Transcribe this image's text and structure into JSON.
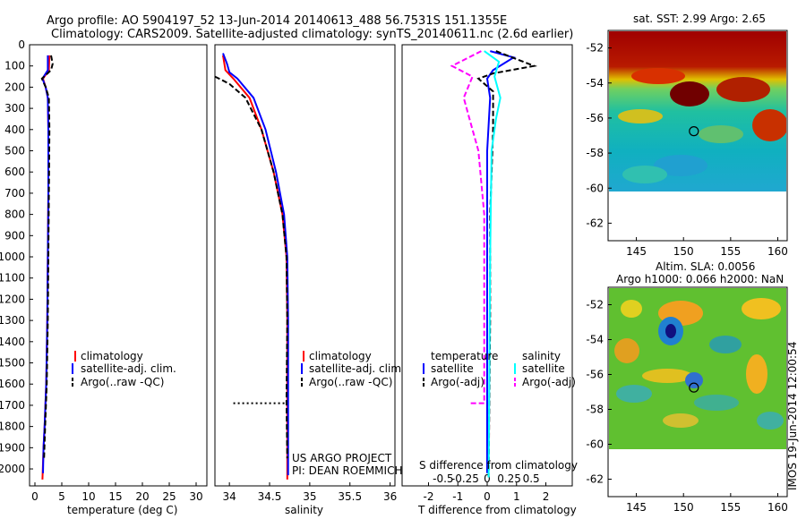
{
  "header": {
    "line1": "Argo profile: AO 5904197_52 13-Jun-2014 20140613_488 56.7531S 151.1355E",
    "line2": "Climatology: CARS2009. Satellite-adjusted climatology: synTS_20140611.nc (2.6d earlier)"
  },
  "colors": {
    "climatology": "#ff0000",
    "satellite": "#0000ff",
    "argo": "#000000",
    "salinity_satellite": "#00ffff",
    "salinity_argo": "#ff00ff"
  },
  "chart_data": [
    {
      "type": "line",
      "panel": "temperature",
      "xlabel": "temperature (deg C)",
      "xticks": [
        0,
        5,
        10,
        15,
        20,
        25,
        30
      ],
      "xlim": [
        -1,
        32
      ],
      "ylim": [
        2080,
        0
      ],
      "yticks": [
        0,
        100,
        200,
        300,
        400,
        500,
        600,
        700,
        800,
        900,
        1000,
        1100,
        1200,
        1300,
        1400,
        1500,
        1600,
        1700,
        1800,
        1900,
        2000
      ],
      "legend": [
        "climatology",
        "satellite-adj. clim.",
        "Argo(..raw -QC)"
      ],
      "series": [
        {
          "name": "climatology",
          "points": [
            [
              2.7,
              50
            ],
            [
              2.6,
              120
            ],
            [
              1.5,
              160
            ],
            [
              2.0,
              200
            ],
            [
              2.4,
              250
            ],
            [
              2.5,
              400
            ],
            [
              2.5,
              700
            ],
            [
              2.4,
              1000
            ],
            [
              2.3,
              1300
            ],
            [
              2.1,
              1600
            ],
            [
              1.8,
              1800
            ],
            [
              1.6,
              1900
            ],
            [
              1.4,
              2050
            ]
          ]
        },
        {
          "name": "satellite-adj. clim.",
          "points": [
            [
              2.4,
              50
            ],
            [
              2.4,
              120
            ],
            [
              1.4,
              160
            ],
            [
              2.0,
              200
            ],
            [
              2.4,
              250
            ],
            [
              2.5,
              400
            ],
            [
              2.5,
              700
            ],
            [
              2.4,
              1000
            ],
            [
              2.3,
              1300
            ],
            [
              2.1,
              1600
            ],
            [
              1.8,
              1800
            ],
            [
              1.6,
              1900
            ],
            [
              1.5,
              2020
            ]
          ]
        },
        {
          "name": "Argo(..raw -QC)",
          "points": [
            [
              3.0,
              50
            ],
            [
              3.3,
              90
            ],
            [
              3.0,
              120
            ],
            [
              1.3,
              160
            ],
            [
              2.0,
              200
            ],
            [
              2.6,
              250
            ],
            [
              2.7,
              400
            ],
            [
              2.6,
              700
            ],
            [
              2.5,
              1000
            ],
            [
              2.4,
              1300
            ],
            [
              2.2,
              1600
            ],
            [
              1.9,
              1800
            ],
            [
              1.7,
              1950
            ]
          ]
        }
      ]
    },
    {
      "type": "line",
      "panel": "salinity",
      "xlabel": "salinity",
      "xticks": [
        34,
        34.5,
        35,
        35.5,
        36
      ],
      "xlim": [
        33.82,
        36.06
      ],
      "ylim": [
        2080,
        0
      ],
      "legend": [
        "climatology",
        "satellite-adj. clim.",
        "Argo(..raw -QC)"
      ],
      "annotation": [
        "US ARGO PROJECT",
        "PI: DEAN ROEMMICH"
      ],
      "series": [
        {
          "name": "climatology",
          "points": [
            [
              33.92,
              50
            ],
            [
              33.95,
              120
            ],
            [
              34.05,
              160
            ],
            [
              34.25,
              250
            ],
            [
              34.4,
              400
            ],
            [
              34.55,
              600
            ],
            [
              34.66,
              800
            ],
            [
              34.71,
              1000
            ],
            [
              34.72,
              1300
            ],
            [
              34.72,
              1700
            ],
            [
              34.72,
              2050
            ]
          ]
        },
        {
          "name": "satellite-adj. clim.",
          "points": [
            [
              33.92,
              40
            ],
            [
              33.97,
              90
            ],
            [
              34.0,
              130
            ],
            [
              34.1,
              160
            ],
            [
              34.3,
              250
            ],
            [
              34.45,
              400
            ],
            [
              34.58,
              600
            ],
            [
              34.68,
              800
            ],
            [
              34.72,
              1000
            ],
            [
              34.73,
              1300
            ],
            [
              34.73,
              1700
            ],
            [
              34.73,
              2030
            ]
          ]
        },
        {
          "name": "Argo(..raw -QC)",
          "points": [
            [
              33.82,
              150
            ],
            [
              33.9,
              165
            ],
            [
              34.0,
              185
            ],
            [
              34.2,
              250
            ],
            [
              34.4,
              400
            ],
            [
              34.55,
              600
            ],
            [
              34.66,
              800
            ],
            [
              34.71,
              1000
            ],
            [
              34.72,
              1300
            ],
            [
              34.71,
              1680
            ],
            [
              34.72,
              1950
            ]
          ]
        },
        {
          "name": "Argo dotted",
          "points": [
            [
              34.05,
              1690
            ],
            [
              34.72,
              1690
            ]
          ],
          "dashed": true
        }
      ]
    },
    {
      "type": "line",
      "panel": "difference",
      "xlabel": "T difference from climatology",
      "top_xlabel": "S difference from climatology",
      "xticks": [
        -2,
        -1,
        0,
        1,
        2
      ],
      "s_xticks": [
        "-0.5",
        "-0.25",
        "0",
        "0.25",
        "0.5"
      ],
      "xlim": [
        -2.9,
        2.9
      ],
      "ylim": [
        2080,
        0
      ],
      "legend_headers": [
        "temperature",
        "salinity"
      ],
      "legend": [
        "satellite",
        "Argo(-adj)",
        "satellite",
        "Argo(-adj)"
      ],
      "series": [
        {
          "name": "T satellite",
          "points": [
            [
              0.1,
              30
            ],
            [
              0.9,
              60
            ],
            [
              0.2,
              120
            ],
            [
              0.0,
              160
            ],
            [
              0.1,
              250
            ],
            [
              0.0,
              500
            ],
            [
              0.0,
              1000
            ],
            [
              0.0,
              1600
            ],
            [
              0.0,
              2020
            ]
          ]
        },
        {
          "name": "T Argo(-adj)",
          "points": [
            [
              0.3,
              30
            ],
            [
              1.6,
              100
            ],
            [
              0.2,
              135
            ],
            [
              -0.3,
              160
            ],
            [
              0.2,
              220
            ],
            [
              0.2,
              400
            ],
            [
              0.1,
              800
            ],
            [
              0.1,
              1300
            ],
            [
              0.05,
              2040
            ]
          ]
        },
        {
          "name": "S satellite",
          "points": [
            [
              -0.1,
              30
            ],
            [
              0.4,
              80
            ],
            [
              0.25,
              150
            ],
            [
              0.45,
              250
            ],
            [
              0.3,
              350
            ],
            [
              0.15,
              500
            ],
            [
              0.1,
              1000
            ],
            [
              0.05,
              2040
            ]
          ]
        },
        {
          "name": "S Argo(-adj)",
          "points": [
            [
              -0.2,
              30
            ],
            [
              -1.2,
              100
            ],
            [
              -0.5,
              150
            ],
            [
              -0.8,
              250
            ],
            [
              -0.6,
              350
            ],
            [
              -0.3,
              500
            ],
            [
              -0.1,
              800
            ],
            [
              -0.1,
              1690
            ],
            [
              -0.6,
              1690
            ]
          ]
        }
      ]
    },
    {
      "type": "heatmap",
      "panel": "sst_map",
      "title": "sat. SST: 2.99 Argo: 2.65",
      "xticks": [
        145,
        150,
        155,
        160
      ],
      "yticks": [
        -52,
        -54,
        -56,
        -58,
        -60,
        -62
      ],
      "xlim": [
        142,
        161
      ],
      "ylim": [
        -63,
        -51
      ],
      "argo_marker": [
        151.1,
        -56.75
      ]
    },
    {
      "type": "heatmap",
      "panel": "sla_map",
      "title_line1": "Altim. SLA: 0.0056",
      "title_line2": "Argo h1000: 0.066 h2000: NaN",
      "xticks": [
        145,
        150,
        155,
        160
      ],
      "yticks": [
        -52,
        -54,
        -56,
        -58,
        -60,
        -62
      ],
      "xlim": [
        142,
        161
      ],
      "ylim": [
        -63,
        -51
      ],
      "argo_marker": [
        151.1,
        -56.75
      ],
      "side_label": "IMOS 19-Jun-2014 12:00:54"
    }
  ]
}
